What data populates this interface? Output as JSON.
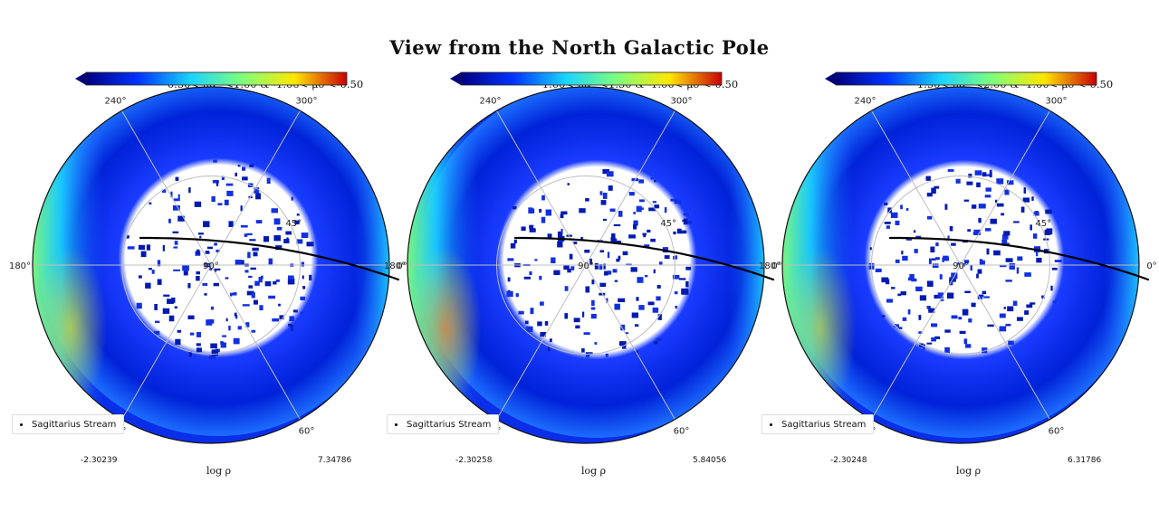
{
  "title": "View from the North Galactic Pole",
  "chart_data": [
    {
      "type": "heatmap",
      "projection": "polar (north galactic pole)",
      "panel_title": "0.50< μα* <1.00 & -1.00< μδ <-0.50",
      "angle_ticks": [
        "0°",
        "60°",
        "120°",
        "180°",
        "240°",
        "300°"
      ],
      "radial_ticks": [
        "90°",
        "45°"
      ],
      "colorbar": {
        "label": "log ρ",
        "min": "-2.30239",
        "max": "7.34786",
        "colormap": "jet"
      },
      "legend": [
        "Sagittarius Stream"
      ],
      "overlay_series": {
        "name": "Sagittarius Stream",
        "style": "black points"
      }
    },
    {
      "type": "heatmap",
      "projection": "polar (north galactic pole)",
      "panel_title": "1.00< μα* <1.50 & -1.00< μδ <-0.50",
      "angle_ticks": [
        "0°",
        "60°",
        "120°",
        "180°",
        "240°",
        "300°"
      ],
      "radial_ticks": [
        "90°",
        "45°"
      ],
      "colorbar": {
        "label": "log ρ",
        "min": "-2.30258",
        "max": "5.84056",
        "colormap": "jet"
      },
      "legend": [
        "Sagittarius Stream"
      ],
      "overlay_series": {
        "name": "Sagittarius Stream",
        "style": "black points"
      }
    },
    {
      "type": "heatmap",
      "projection": "polar (north galactic pole)",
      "panel_title": "1.50< μα* <2.00 & -1.00< μδ <-0.50",
      "angle_ticks": [
        "0°",
        "60°",
        "120°",
        "180°",
        "240°",
        "300°"
      ],
      "radial_ticks": [
        "90°",
        "45°"
      ],
      "colorbar": {
        "label": "log ρ",
        "min": "-2.30248",
        "max": "6.31786",
        "colormap": "jet"
      },
      "legend": [
        "Sagittarius Stream"
      ],
      "overlay_series": {
        "name": "Sagittarius Stream",
        "style": "black points"
      }
    }
  ],
  "colors": {
    "jet_dark": "#00007f",
    "jet_blue": "#0033ff",
    "jet_cyan": "#19d3ff",
    "jet_green": "#7fff7a",
    "jet_yellow": "#ffe600",
    "jet_red": "#c80000"
  }
}
